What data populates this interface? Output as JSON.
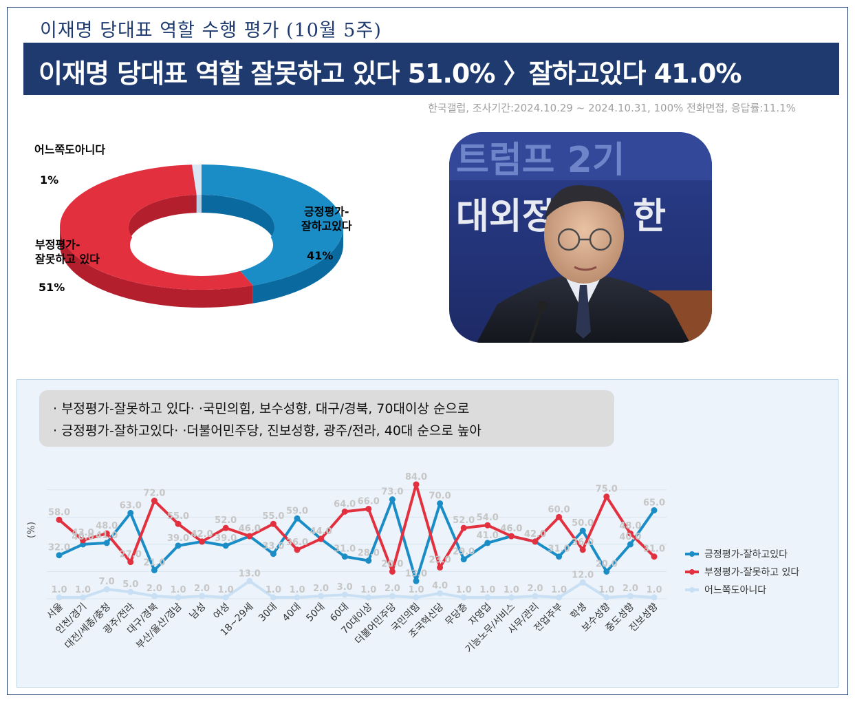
{
  "header": {
    "subtitle": "이재명 당대표 역할 수행 평가 (10월 5주)",
    "banner": "이재명 당대표 역할 잘못하고 있다 51.0% 〉잘하고있다 41.0%",
    "source": "한국갤럽, 조사기간:2024.10.29 ~ 2024.10.31, 100% 전화면접, 응답률:11.1%"
  },
  "pie": {
    "slices": [
      {
        "line1": "긍정평가-",
        "line2": "잘하고있다",
        "value_label": "41%",
        "value": 41,
        "color": "#1a8dc6",
        "side": "#0a6aa0"
      },
      {
        "line1": "부정평가-",
        "line2": "잘못하고 있다",
        "value_label": "51%",
        "value": 51,
        "color": "#e3303f",
        "side": "#b41f2e"
      },
      {
        "line1": "어느쪽도아니다",
        "line2": "",
        "value_label": "1%",
        "value": 1,
        "color": "#d9e7f5",
        "side": "#b9cfe6"
      }
    ]
  },
  "photo": {
    "banner_line1": "트럼프 2기 ",
    "banner_line2": "대외정책과 한"
  },
  "notes": [
    "· 부정평가-잘못하고 있다· ·국민의힘, 보수성향, 대구/경북, 70대이상 순으로",
    "· 긍정평가-잘하고있다· ·더불어민주당, 진보성향, 광주/전라, 40대 순으로 높아"
  ],
  "chart_data": {
    "type": "line",
    "ylabel": "(%)",
    "categories": [
      "서울",
      "인천/경기",
      "대전/세종/충청",
      "광주/전라",
      "대구/경북",
      "부산/울산/경남",
      "남성",
      "여성",
      "18~29세",
      "30대",
      "40대",
      "50대",
      "60대",
      "70대이상",
      "더불어민주당",
      "국민의힘",
      "조국혁신당",
      "무당층",
      "자영업",
      "기능노무/서비스",
      "사무/관리",
      "전업주부",
      "학생",
      "보수성향",
      "중도성향",
      "진보성향"
    ],
    "series": [
      {
        "name": "긍정평가-잘하고있다",
        "color": "#1a8dc6",
        "values": [
          32,
          40,
          41,
          63,
          21,
          39,
          42,
          39,
          46,
          33,
          59,
          44,
          31,
          28,
          73,
          13,
          70,
          29,
          41,
          46,
          42,
          31,
          50,
          20,
          40,
          65
        ],
        "labels": [
          "32.0",
          "40.0",
          "41.0",
          "63.0",
          "21.0",
          "39.0",
          "42.0",
          "39.0",
          "46.0",
          "33.0",
          "59.0",
          "44.0",
          "31.0",
          "28.0",
          "73.0",
          "13.0",
          "70.0",
          "29.0",
          "41.0",
          "46.0",
          "42.0",
          "31.0",
          "50.0",
          "20.0",
          "40.0",
          "65.0"
        ]
      },
      {
        "name": "부정평가-잘못하고 있다",
        "color": "#e3303f",
        "values": [
          58,
          43,
          48,
          27,
          72,
          55,
          42,
          52,
          46,
          55,
          36,
          44,
          64,
          66,
          20,
          84,
          23,
          52,
          54,
          46,
          42,
          60,
          36,
          75,
          48,
          31
        ],
        "labels": [
          "58.0",
          "43.0",
          "48.0",
          "27.0",
          "72.0",
          "55.0",
          "42.0",
          "52.0",
          "46.0",
          "55.0",
          "36.0",
          "44.0",
          "64.0",
          "66.0",
          "20.0",
          "84.0",
          "23.0",
          "52.0",
          "54.0",
          "46.0",
          "42.0",
          "60.0",
          "36.0",
          "75.0",
          "48.0",
          "31.0"
        ]
      },
      {
        "name": "어느쪽도아니다",
        "color": "#c9e0f4",
        "values": [
          1,
          1,
          7,
          5,
          2,
          1,
          2,
          1,
          13,
          1,
          1,
          2,
          3,
          1,
          2,
          1,
          4,
          1,
          1,
          1,
          2,
          1,
          12,
          1,
          2,
          1
        ],
        "labels": [
          "1.0",
          "1.0",
          "7.0",
          "5.0",
          "2.0",
          "1.0",
          "2.0",
          "1.0",
          "13.0",
          "1.0",
          "1.0",
          "2.0",
          "3.0",
          "1.0",
          "2.0",
          "1.0",
          "4.0",
          "1.0",
          "1.0",
          "1.0",
          "2.0",
          "1.0",
          "12.0",
          "1.0",
          "2.0",
          "1.0"
        ]
      }
    ],
    "ylim": [
      0,
      90
    ],
    "grid": true,
    "legend": "right"
  }
}
